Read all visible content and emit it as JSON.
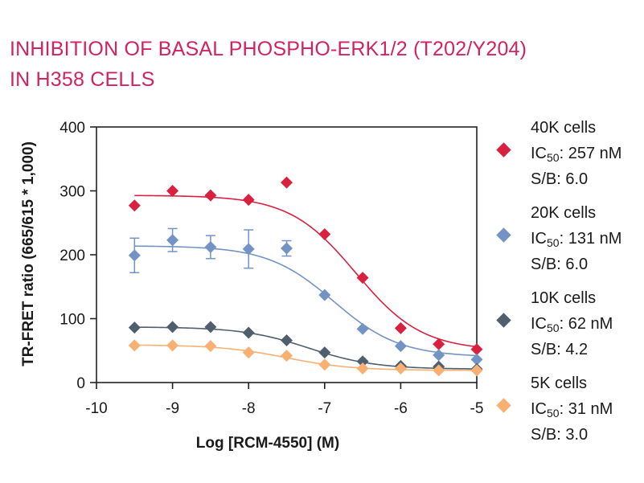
{
  "title": {
    "line1": "INHIBITION OF BASAL PHOSPHO-ERK1/2 (T202/Y204)",
    "line2": "IN H358 CELLS"
  },
  "chart_data": {
    "type": "scatter",
    "xlabel": "Log [RCM-4550] (M)",
    "ylabel": "TR-FRET ratio (665/615 * 1,000)",
    "xlim": [
      -10,
      -5
    ],
    "ylim": [
      0,
      400
    ],
    "xticks": [
      -10,
      -9,
      -8,
      -7,
      -6,
      -5
    ],
    "yticks": [
      0,
      100,
      200,
      300,
      400
    ],
    "grid": false,
    "legend_position": "right",
    "x": [
      -9.5,
      -9,
      -8.5,
      -8,
      -7.5,
      -7,
      -6.5,
      -6,
      -5.5,
      -5
    ],
    "series": [
      {
        "name": "40K cells",
        "ic50_label": "IC",
        "ic50_sub": "50",
        "ic50_value": ": 257 nM",
        "sb": "S/B: 6.0",
        "color": "#d9213f",
        "values": [
          277,
          300,
          293,
          286,
          313,
          232,
          164,
          85,
          60,
          52
        ],
        "errors": [
          0,
          0,
          0,
          0,
          0,
          0,
          0,
          0,
          0,
          0
        ],
        "fit": {
          "top": 293,
          "bottom": 50,
          "logIC50": -6.59,
          "hill": 1.0
        }
      },
      {
        "name": "20K cells",
        "ic50_label": "IC",
        "ic50_sub": "50",
        "ic50_value": ": 131 nM",
        "sb": "S/B: 6.0",
        "color": "#7393c5",
        "values": [
          199,
          223,
          212,
          209,
          210,
          137,
          84,
          57,
          43,
          36
        ],
        "errors": [
          27,
          18,
          18,
          30,
          12,
          0,
          0,
          0,
          0,
          0
        ],
        "fit": {
          "top": 214,
          "bottom": 40,
          "logIC50": -6.88,
          "hill": 1.0
        }
      },
      {
        "name": "10K cells",
        "ic50_label": "IC",
        "ic50_sub": "50",
        "ic50_value": ": 62 nM",
        "sb": "S/B: 4.2",
        "color": "#4f5f6e",
        "values": [
          86,
          87,
          87,
          78,
          66,
          47,
          33,
          26,
          25,
          21
        ],
        "errors": [
          0,
          0,
          0,
          0,
          0,
          0,
          0,
          0,
          0,
          0
        ],
        "fit": {
          "top": 87,
          "bottom": 21,
          "logIC50": -7.21,
          "hill": 1.0
        }
      },
      {
        "name": "5K cells",
        "ic50_label": "IC",
        "ic50_sub": "50",
        "ic50_value": ": 31 nM",
        "sb": "S/B: 3.0",
        "color": "#f8b073",
        "values": [
          58,
          58,
          57,
          47,
          42,
          28,
          22,
          22,
          19,
          19
        ],
        "errors": [
          0,
          0,
          0,
          0,
          0,
          0,
          0,
          0,
          0,
          0
        ],
        "fit": {
          "top": 59,
          "bottom": 19,
          "logIC50": -7.51,
          "hill": 1.0
        }
      }
    ]
  }
}
